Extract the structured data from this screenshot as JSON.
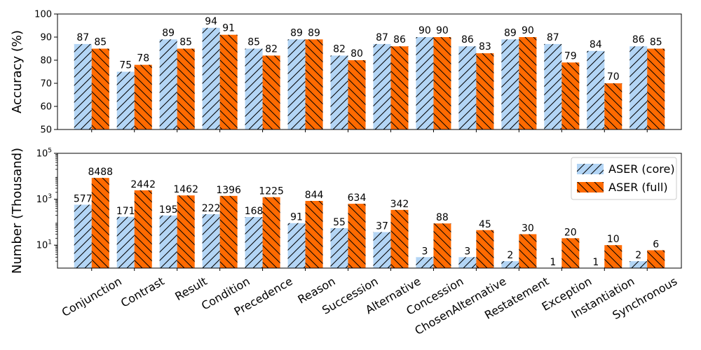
{
  "chart_data": [
    {
      "type": "bar",
      "title": "",
      "xlabel": "",
      "ylabel": "Accuracy (%)",
      "ylim": [
        50,
        100
      ],
      "yticks": [
        50,
        60,
        70,
        80,
        90,
        100
      ],
      "categories": [
        "Conjunction",
        "Contrast",
        "Result",
        "Condition",
        "Precedence",
        "Reason",
        "Succession",
        "Alternative",
        "Concession",
        "ChosenAlternative",
        "Restatement",
        "Exception",
        "Instantiation",
        "Synchronous"
      ],
      "series": [
        {
          "name": "ASER (core)",
          "values": [
            87,
            75,
            89,
            94,
            85,
            89,
            82,
            87,
            90,
            86,
            89,
            87,
            84,
            86
          ],
          "color": "#b3d5f5",
          "hatch": "/"
        },
        {
          "name": "ASER (full)",
          "values": [
            85,
            78,
            85,
            91,
            82,
            89,
            80,
            86,
            90,
            83,
            90,
            79,
            70,
            85
          ],
          "color": "#ff6a00",
          "hatch": "\\"
        }
      ],
      "data_labels": {
        "core": [
          "87",
          "75",
          "89",
          "94",
          "85",
          "89",
          "82",
          "87",
          "90",
          "86",
          "89",
          "87",
          "84",
          "86"
        ],
        "full": [
          "85",
          "78",
          "85",
          "91",
          "82",
          "89",
          "80",
          "86",
          "90",
          "83",
          "90",
          "79",
          "70",
          "85"
        ]
      }
    },
    {
      "type": "bar",
      "title": "",
      "xlabel": "",
      "ylabel": "Number (Thousand)",
      "yscale": "log",
      "ylim": [
        1,
        100000
      ],
      "ytick_values": [
        10,
        1000,
        100000
      ],
      "ytick_labels": [
        {
          "base": "10",
          "exp": "1"
        },
        {
          "base": "10",
          "exp": "3"
        },
        {
          "base": "10",
          "exp": "5"
        }
      ],
      "categories": [
        "Conjunction",
        "Contrast",
        "Result",
        "Condition",
        "Precedence",
        "Reason",
        "Succession",
        "Alternative",
        "Concession",
        "ChosenAlternative",
        "Restatement",
        "Exception",
        "Instantiation",
        "Synchronous"
      ],
      "series": [
        {
          "name": "ASER (core)",
          "values": [
            577,
            171,
            195,
            222,
            168,
            91,
            55,
            37,
            3,
            3,
            2,
            1,
            1,
            2
          ],
          "color": "#b3d5f5",
          "hatch": "/"
        },
        {
          "name": "ASER (full)",
          "values": [
            8488,
            2442,
            1462,
            1396,
            1225,
            844,
            634,
            342,
            88,
            45,
            30,
            20,
            10,
            6
          ],
          "color": "#ff6a00",
          "hatch": "\\"
        }
      ],
      "data_labels": {
        "core": [
          "577",
          "171",
          "195",
          "222",
          "168",
          "91",
          "55",
          "37",
          "3",
          "3",
          "2",
          "1",
          "1",
          "2"
        ],
        "full": [
          "8488",
          "2442",
          "1462",
          "1396",
          "1225",
          "844",
          "634",
          "342",
          "88",
          "45",
          "30",
          "20",
          "10",
          "6"
        ]
      },
      "legend": {
        "position": "upper-right",
        "entries": [
          "ASER (core)",
          "ASER (full)"
        ]
      }
    }
  ]
}
